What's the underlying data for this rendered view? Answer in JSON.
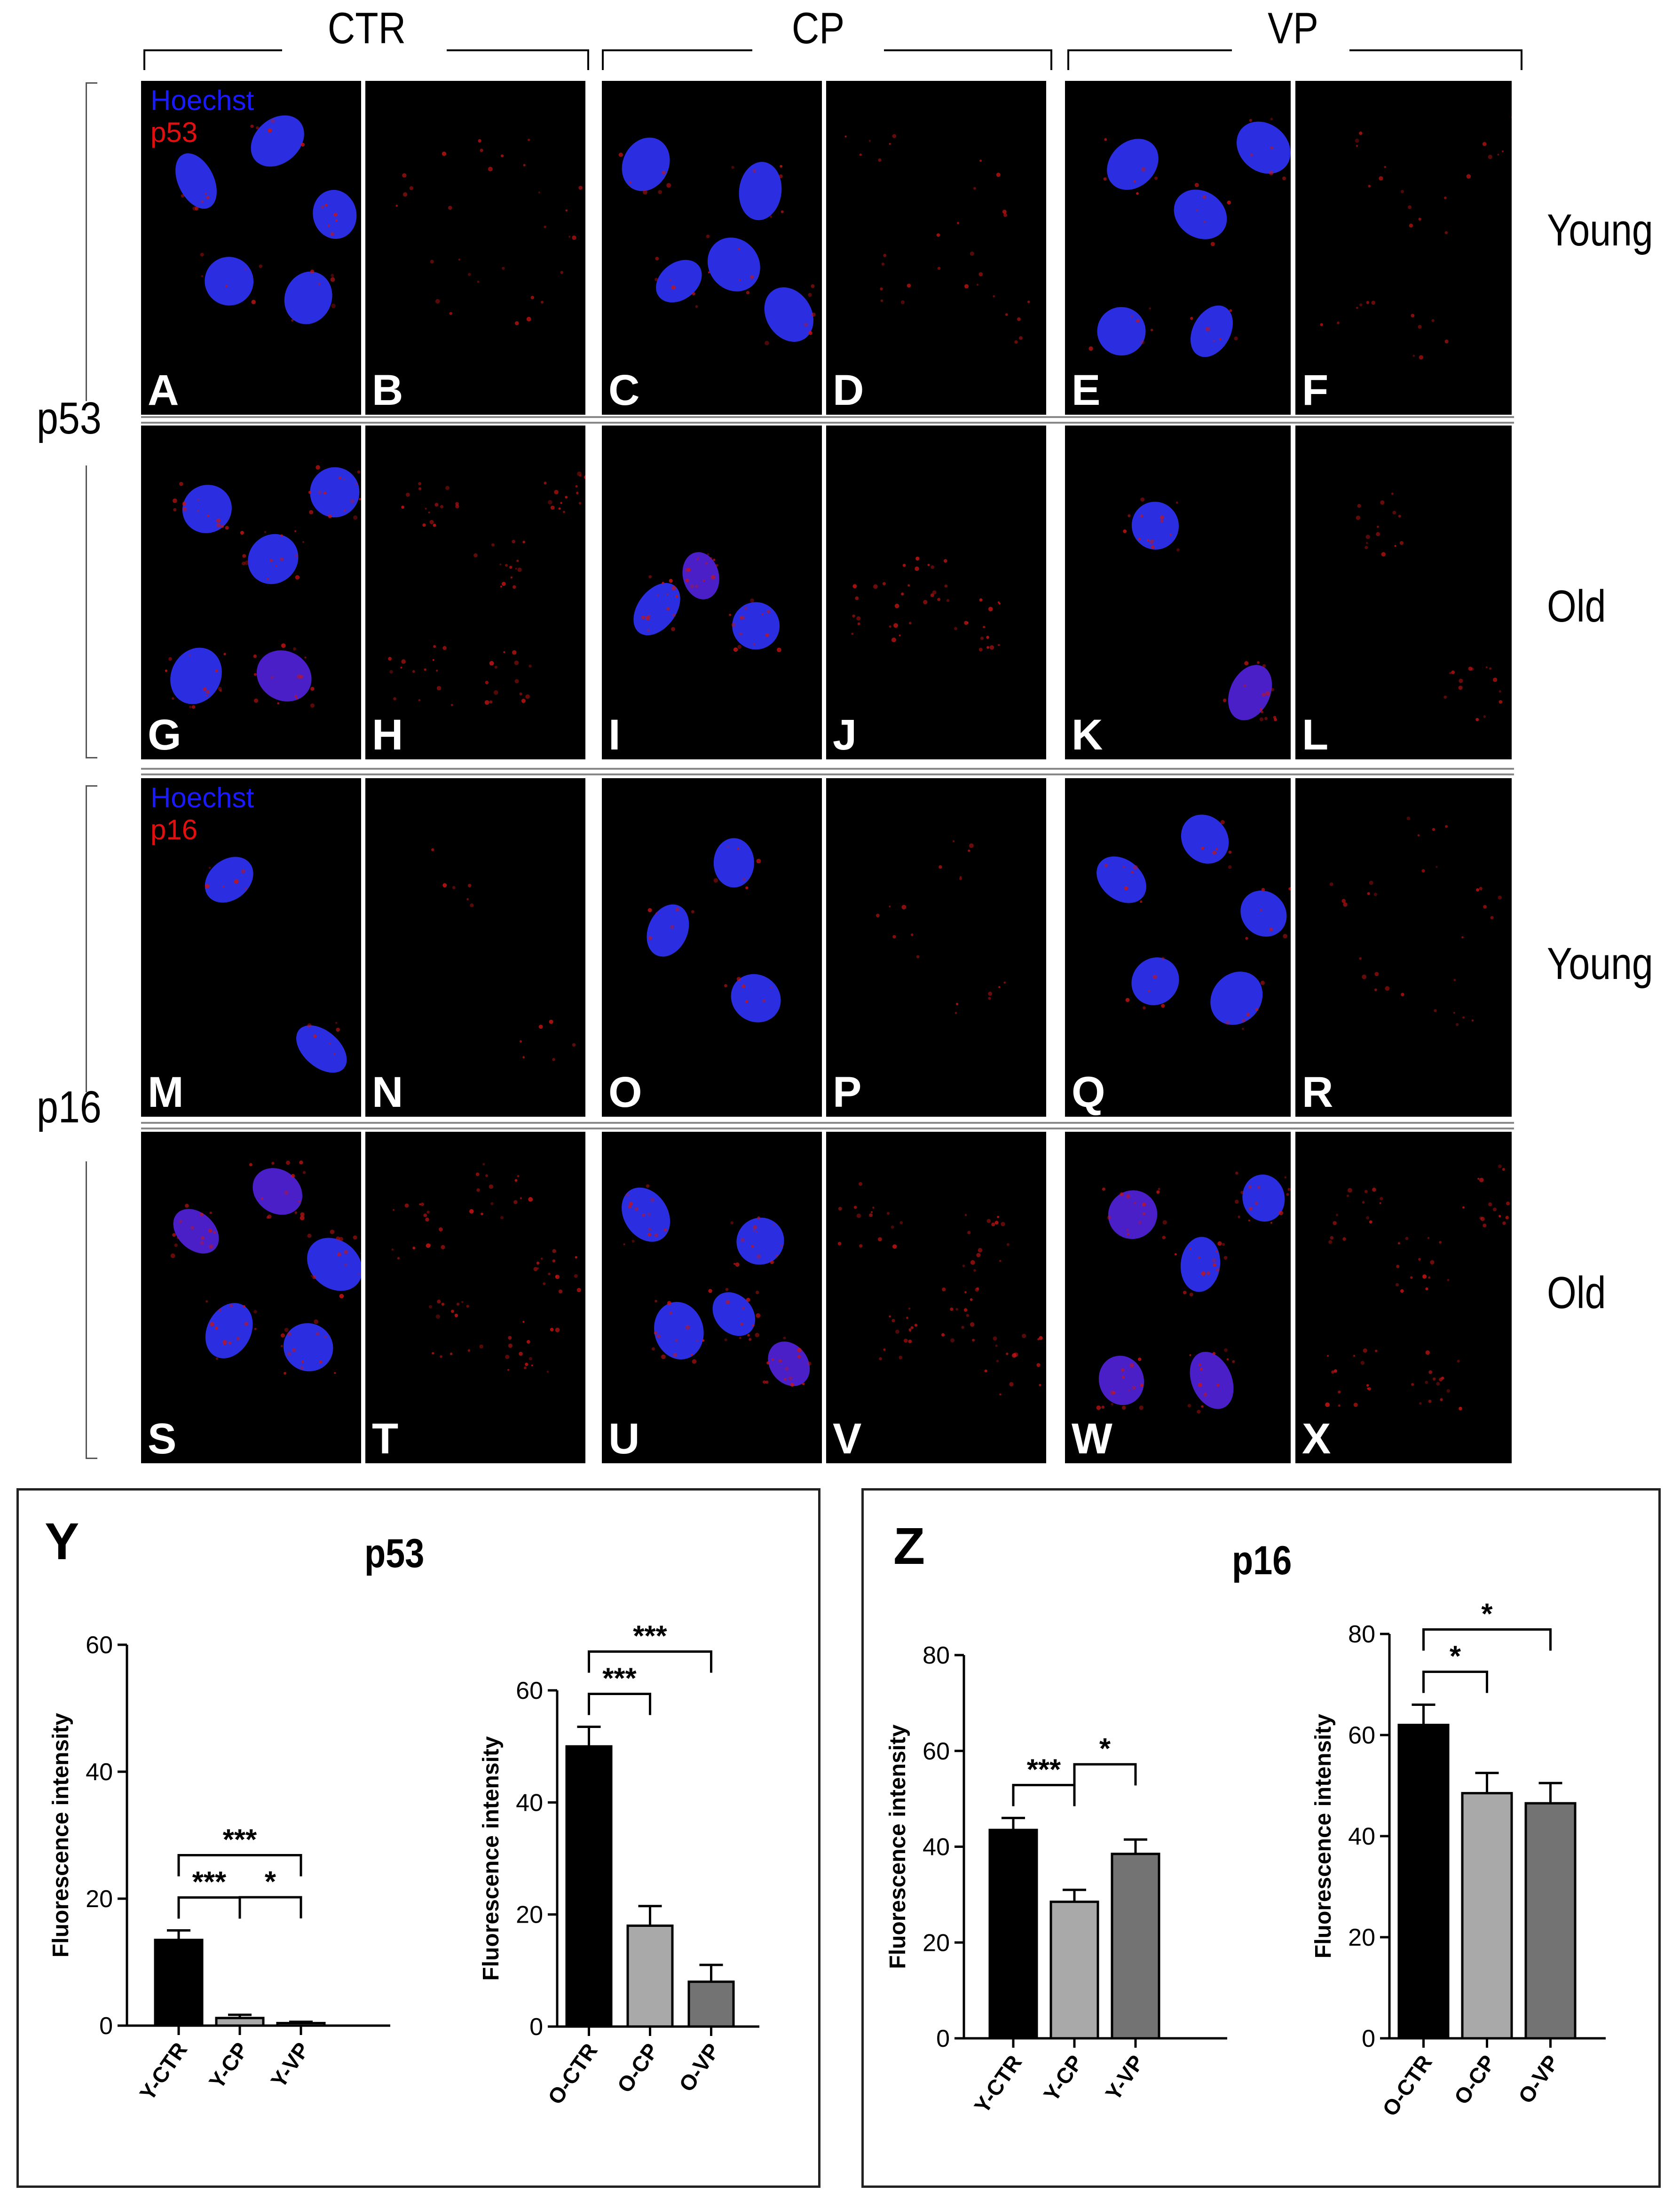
{
  "columns": [
    "CTR",
    "CP",
    "VP"
  ],
  "row_groups": [
    "p53",
    "p16"
  ],
  "ages": [
    "Young",
    "Old",
    "Young",
    "Old"
  ],
  "channel_labels": {
    "p53": [
      "Hoechst",
      "p53"
    ],
    "p16": [
      "Hoechst",
      "p16"
    ]
  },
  "panel_letters": [
    "A",
    "B",
    "C",
    "D",
    "E",
    "F",
    "G",
    "H",
    "I",
    "J",
    "K",
    "L",
    "M",
    "N",
    "O",
    "P",
    "Q",
    "R",
    "S",
    "T",
    "U",
    "V",
    "W",
    "X"
  ],
  "figure_panels": {
    "Y": {
      "letter": "Y",
      "title": "p53"
    },
    "Z": {
      "letter": "Z",
      "title": "p16"
    }
  },
  "chart_data": [
    {
      "type": "bar",
      "title": "p53",
      "ylabel": "Fluorescence intensity",
      "categories": [
        "Y-CTR",
        "Y-CP",
        "Y-VP"
      ],
      "values": [
        13.5,
        1.2,
        0.4
      ],
      "errors": [
        1.5,
        0.5,
        0.2
      ],
      "ylim": [
        0,
        60
      ],
      "yticks": [
        "0",
        "20",
        "40",
        "60"
      ],
      "colors": [
        "#000000",
        "#a9a9a9",
        "#737373"
      ],
      "significance": [
        {
          "from": 0,
          "to": 1,
          "label": "***"
        },
        {
          "from": 0,
          "to": 2,
          "label": "***"
        },
        {
          "from": 1,
          "to": 2,
          "label": "*"
        }
      ]
    },
    {
      "type": "bar",
      "title": "",
      "ylabel": "Fluorescence intensity",
      "categories": [
        "O-CTR",
        "O-CP",
        "O-VP"
      ],
      "values": [
        50,
        18,
        8
      ],
      "errors": [
        3.5,
        3.5,
        3
      ],
      "ylim": [
        0,
        60
      ],
      "yticks": [
        "0",
        "20",
        "40",
        "60"
      ],
      "colors": [
        "#000000",
        "#a9a9a9",
        "#737373"
      ],
      "significance": [
        {
          "from": 0,
          "to": 1,
          "label": "***"
        },
        {
          "from": 0,
          "to": 2,
          "label": "***"
        }
      ]
    },
    {
      "type": "bar",
      "title": "p16",
      "ylabel": "Fluorescence intensity",
      "categories": [
        "Y-CTR",
        "Y-CP",
        "Y-VP"
      ],
      "values": [
        43.5,
        28.5,
        38.5
      ],
      "errors": [
        2.5,
        2.5,
        3
      ],
      "ylim": [
        0,
        80
      ],
      "yticks": [
        "0",
        "20",
        "40",
        "60",
        "80"
      ],
      "colors": [
        "#000000",
        "#a9a9a9",
        "#737373"
      ],
      "significance": [
        {
          "from": 0,
          "to": 1,
          "label": "***"
        },
        {
          "from": 1,
          "to": 2,
          "label": "*"
        }
      ]
    },
    {
      "type": "bar",
      "title": "",
      "ylabel": "Fluorescence intensity",
      "categories": [
        "O-CTR",
        "O-CP",
        "O-VP"
      ],
      "values": [
        62,
        48.5,
        46.5
      ],
      "errors": [
        4,
        4,
        4
      ],
      "ylim": [
        0,
        80
      ],
      "yticks": [
        "0",
        "20",
        "40",
        "60",
        "80"
      ],
      "colors": [
        "#000000",
        "#a9a9a9",
        "#737373"
      ],
      "significance": [
        {
          "from": 0,
          "to": 1,
          "label": "*"
        },
        {
          "from": 0,
          "to": 2,
          "label": "*"
        }
      ]
    }
  ]
}
